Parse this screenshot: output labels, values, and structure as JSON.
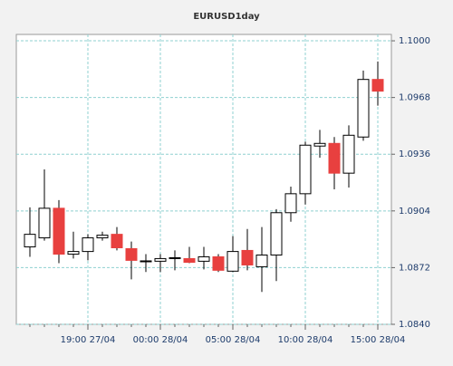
{
  "chart_data": {
    "type": "candlestick",
    "title": "EURUSD1day",
    "categories": [
      null,
      null,
      null,
      null,
      "19:00 27/04",
      null,
      null,
      null,
      null,
      "00:00 28/04",
      null,
      null,
      null,
      null,
      "05:00 28/04",
      null,
      null,
      null,
      null,
      "10:00 28/04",
      null,
      null,
      null,
      null,
      "15:00 28/04"
    ],
    "open": [
      1.08837,
      1.08888,
      1.09055,
      1.08796,
      1.08811,
      1.08888,
      1.08908,
      1.08827,
      1.08756,
      1.08756,
      1.08771,
      1.08771,
      1.08756,
      1.08781,
      1.087,
      1.08817,
      1.08725,
      1.08791,
      1.0903,
      1.09137,
      1.09406,
      1.09421,
      1.09253,
      1.09457,
      1.09782
    ],
    "high": [
      1.0906,
      1.09274,
      1.09101,
      1.08923,
      1.08908,
      1.08923,
      1.08949,
      1.08867,
      1.08796,
      1.08796,
      1.08817,
      1.08837,
      1.08837,
      1.08796,
      1.08898,
      1.08938,
      1.08949,
      1.0905,
      1.09177,
      1.09431,
      1.09497,
      1.09457,
      1.09523,
      1.09832,
      1.09883
    ],
    "low": [
      1.08781,
      1.08872,
      1.08745,
      1.08771,
      1.08761,
      1.08872,
      1.08817,
      1.08654,
      1.08695,
      1.08695,
      1.08705,
      1.08745,
      1.0871,
      1.08695,
      1.08695,
      1.08705,
      1.08583,
      1.08644,
      1.08979,
      1.09076,
      1.0934,
      1.09162,
      1.09172,
      1.09436,
      1.09634
    ],
    "close": [
      1.08908,
      1.09055,
      1.08796,
      1.08811,
      1.08888,
      1.08903,
      1.08832,
      1.08761,
      1.08758,
      1.08771,
      1.08776,
      1.0875,
      1.08781,
      1.08705,
      1.08811,
      1.08735,
      1.08791,
      1.0903,
      1.09137,
      1.09411,
      1.09421,
      1.09253,
      1.09467,
      1.09782,
      1.09716
    ],
    "up_color": "#ffffff",
    "down_color": "#e8403f",
    "ylim": [
      1.084,
      1.10036
    ],
    "yticks": [
      {
        "value": 1.084,
        "label": "1.0840"
      },
      1.0872,
      1.0904,
      1.0936,
      1.0968,
      {
        "value": 1.1,
        "label": "1.1000"
      }
    ],
    "grid": true
  }
}
